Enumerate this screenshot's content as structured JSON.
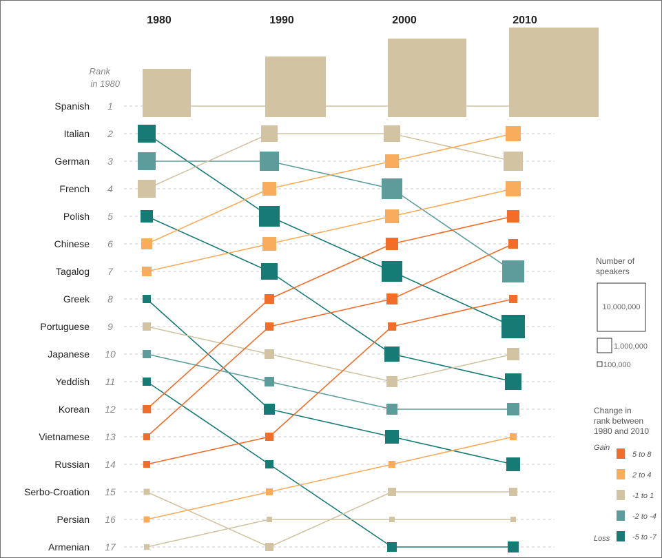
{
  "chart_data": {
    "type": "slope",
    "years": [
      "1980",
      "1990",
      "2000",
      "2010"
    ],
    "rank_header": [
      "Rank",
      "in 1980"
    ],
    "languages": [
      {
        "name": "Spanish",
        "rank1980": "1",
        "ranks": [
          1,
          1,
          1,
          1
        ],
        "categories": [
          "c0",
          "c0",
          "c0",
          "c0"
        ]
      },
      {
        "name": "Italian",
        "rank1980": "2",
        "ranks": [
          2,
          5,
          7,
          9
        ],
        "categories": [
          "c-57",
          "c-57",
          "c-57",
          "c-57"
        ]
      },
      {
        "name": "German",
        "rank1980": "3",
        "ranks": [
          3,
          3,
          4,
          7
        ],
        "categories": [
          "c-24",
          "c-24",
          "c-24",
          "c-24"
        ]
      },
      {
        "name": "French",
        "rank1980": "4",
        "ranks": [
          4,
          2,
          2,
          3
        ],
        "categories": [
          "c0",
          "c0",
          "c0",
          "c0"
        ]
      },
      {
        "name": "Polish",
        "rank1980": "5",
        "ranks": [
          5,
          7,
          10,
          11
        ],
        "categories": [
          "c-57",
          "c-57",
          "c-57",
          "c-57"
        ]
      },
      {
        "name": "Chinese",
        "rank1980": "6",
        "ranks": [
          6,
          4,
          3,
          2
        ],
        "categories": [
          "c24",
          "c24",
          "c24",
          "c24"
        ]
      },
      {
        "name": "Tagalog",
        "rank1980": "7",
        "ranks": [
          7,
          6,
          5,
          4
        ],
        "categories": [
          "c24",
          "c24",
          "c24",
          "c24"
        ]
      },
      {
        "name": "Greek",
        "rank1980": "8",
        "ranks": [
          8,
          12,
          13,
          14
        ],
        "categories": [
          "c-57",
          "c-57",
          "c-57",
          "c-57"
        ]
      },
      {
        "name": "Portuguese",
        "rank1980": "9",
        "ranks": [
          9,
          10,
          11,
          10
        ],
        "categories": [
          "c0",
          "c0",
          "c0",
          "c0"
        ]
      },
      {
        "name": "Japanese",
        "rank1980": "10",
        "ranks": [
          10,
          11,
          12,
          12
        ],
        "categories": [
          "c-24",
          "c-24",
          "c-24",
          "c-24"
        ]
      },
      {
        "name": "Yeddish",
        "rank1980": "11",
        "ranks": [
          11,
          14,
          17,
          17
        ],
        "categories": [
          "c-57",
          "c-57",
          "c-57",
          "c-57"
        ]
      },
      {
        "name": "Korean",
        "rank1980": "12",
        "ranks": [
          12,
          8,
          6,
          5
        ],
        "categories": [
          "c58",
          "c58",
          "c58",
          "c58"
        ]
      },
      {
        "name": "Vietnamese",
        "rank1980": "13",
        "ranks": [
          13,
          9,
          8,
          6
        ],
        "categories": [
          "c58",
          "c58",
          "c58",
          "c58"
        ]
      },
      {
        "name": "Russian",
        "rank1980": "14",
        "ranks": [
          14,
          13,
          9,
          8
        ],
        "categories": [
          "c58",
          "c58",
          "c58",
          "c58"
        ]
      },
      {
        "name": "Serbo-Croation",
        "rank1980": "15",
        "ranks": [
          15,
          17,
          15,
          15
        ],
        "categories": [
          "c0",
          "c0",
          "c0",
          "c0"
        ]
      },
      {
        "name": "Persian",
        "rank1980": "16",
        "ranks": [
          16,
          15,
          14,
          13
        ],
        "categories": [
          "c24",
          "c24",
          "c24",
          "c24"
        ]
      },
      {
        "name": "Armenian",
        "rank1980": "17",
        "ranks": [
          17,
          16,
          16,
          16
        ],
        "categories": [
          "c0",
          "c0",
          "c0",
          "c0"
        ]
      }
    ],
    "category_colors": {
      "c58": "#f26c2a",
      "c24": "#f9ac5b",
      "c0": "#d2c4a2",
      "c-24": "#5c9d9b",
      "c-57": "#167a75"
    },
    "legend": {
      "size_title": [
        "Number of",
        "speakers"
      ],
      "size_labels": [
        "10,000,000",
        "1,000,000",
        "100,000"
      ],
      "change_title": [
        "Change in",
        "rank between",
        "1980 and 2010"
      ],
      "gain_label": "Gain",
      "loss_label": "Loss",
      "items": [
        {
          "key": "c58",
          "label": "5 to 8"
        },
        {
          "key": "c24",
          "label": "2 to 4"
        },
        {
          "key": "c0",
          "label": "-1 to 1"
        },
        {
          "key": "c-24",
          "label": "-2 to -4"
        },
        {
          "key": "c-57",
          "label": "-5 to -7"
        }
      ]
    }
  }
}
